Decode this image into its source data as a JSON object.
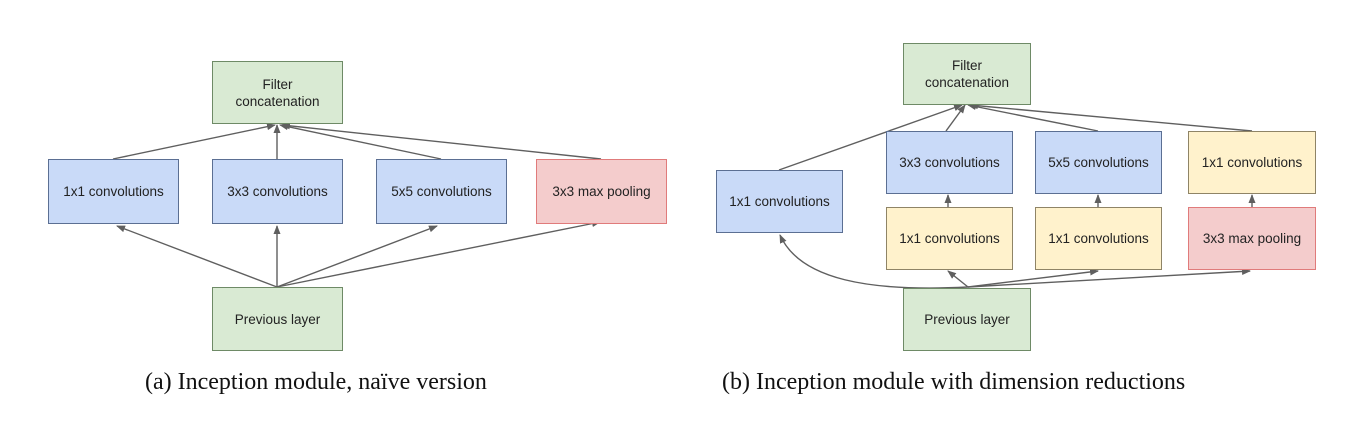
{
  "diagram_a": {
    "caption": "(a)  Inception module, naïve version",
    "filter_concat": "Filter\nconcatenation",
    "conv1": "1x1 convolutions",
    "conv3": "3x3 convolutions",
    "conv5": "5x5 convolutions",
    "pool": "3x3 max pooling",
    "previous": "Previous layer"
  },
  "diagram_b": {
    "caption": "(b)  Inception module with dimension reductions",
    "filter_concat": "Filter\nconcatenation",
    "conv1": "1x1 convolutions",
    "conv3": "3x3 convolutions",
    "conv5": "5x5 convolutions",
    "conv1_after_pool": "1x1 convolutions",
    "reduce3": "1x1 convolutions",
    "reduce5": "1x1 convolutions",
    "pool": "3x3 max pooling",
    "previous": "Previous layer"
  },
  "colors": {
    "green": "#d9ead3",
    "blue": "#c9daf8",
    "yellow": "#fff2cc",
    "red": "#f4cccc",
    "edge": "#5f5f5f"
  }
}
